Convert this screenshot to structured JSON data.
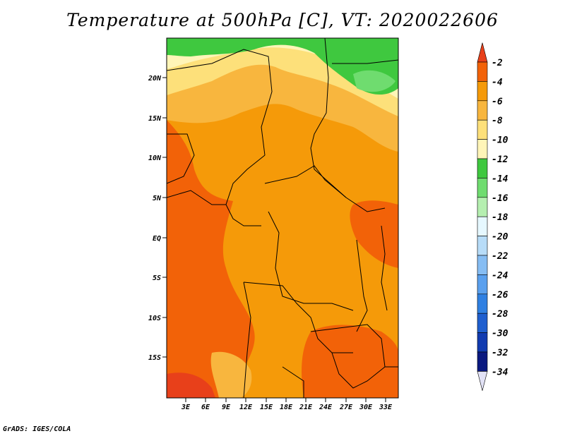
{
  "title": "Temperature at 500hPa [C], VT: 2020022606",
  "footer": "GrADS: IGES/COLA",
  "map": {
    "lon_labels": [
      "3E",
      "6E",
      "9E",
      "12E",
      "15E",
      "18E",
      "21E",
      "24E",
      "27E",
      "30E",
      "33E"
    ],
    "lat_labels": [
      "20N",
      "15N",
      "10N",
      "5N",
      "EQ",
      "5S",
      "10S",
      "15S"
    ]
  },
  "legend": {
    "levels": [
      "-2",
      "-4",
      "-6",
      "-8",
      "-10",
      "-12",
      "-14",
      "-16",
      "-18",
      "-20",
      "-22",
      "-24",
      "-26",
      "-28",
      "-30",
      "-32",
      "-34"
    ],
    "colors": [
      "#e8401a",
      "#f26208",
      "#f59a09",
      "#f8b63e",
      "#fde07a",
      "#fff5b8",
      "#3fc83f",
      "#6fdc6f",
      "#b5efb0",
      "#e6f8ff",
      "#b7dcf8",
      "#86bdf3",
      "#5aa0ee",
      "#2f80e2",
      "#1f5fcf",
      "#113bb0",
      "#0a1980",
      "#e2e2f6"
    ]
  }
}
